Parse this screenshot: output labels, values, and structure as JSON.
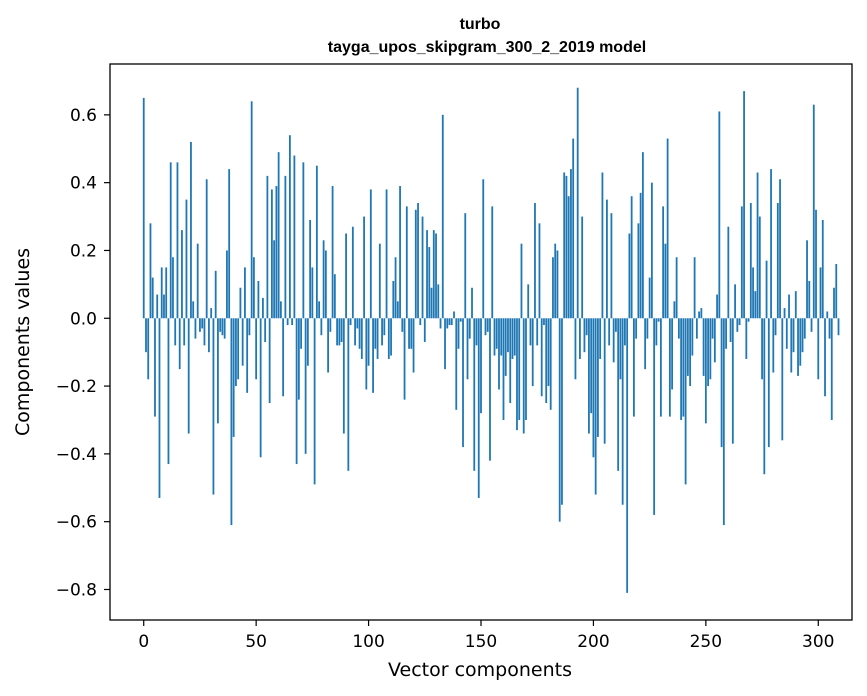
{
  "chart_data": {
    "type": "bar",
    "title": "turbo",
    "subtitle": "tayga_upos_skipgram_300_2_2019 model",
    "xlabel": "Vector components",
    "ylabel": "Components values",
    "xlim": [
      -15,
      315
    ],
    "ylim": [
      -0.89,
      0.75
    ],
    "xticks": [
      0,
      50,
      100,
      150,
      200,
      250,
      300
    ],
    "xtick_labels": [
      "0",
      "50",
      "100",
      "150",
      "200",
      "250",
      "300"
    ],
    "yticks": [
      -0.8,
      -0.6,
      -0.4,
      -0.2,
      0.0,
      0.2,
      0.4,
      0.6
    ],
    "ytick_labels": [
      "−0.8",
      "−0.6",
      "−0.4",
      "−0.2",
      "0.0",
      "0.2",
      "0.4",
      "0.6"
    ],
    "bar_color": "#1f77b4",
    "grid": false,
    "values": [
      0.65,
      -0.1,
      -0.18,
      0.28,
      0.12,
      -0.29,
      0.07,
      -0.53,
      0.15,
      0.07,
      0.15,
      -0.43,
      0.46,
      0.18,
      -0.08,
      0.46,
      -0.15,
      0.26,
      -0.08,
      0.35,
      -0.34,
      0.52,
      0.05,
      -0.06,
      0.22,
      -0.04,
      -0.03,
      -0.08,
      0.41,
      -0.1,
      0.03,
      -0.52,
      0.14,
      -0.31,
      -0.04,
      -0.05,
      -0.06,
      0.2,
      0.44,
      -0.61,
      -0.35,
      -0.2,
      -0.18,
      0.09,
      -0.14,
      0.15,
      -0.22,
      -0.05,
      0.64,
      0.18,
      -0.18,
      0.11,
      -0.41,
      0.06,
      -0.07,
      0.42,
      -0.25,
      0.38,
      0.23,
      0.39,
      0.49,
      0.05,
      -0.23,
      0.42,
      -0.02,
      0.54,
      -0.02,
      0.48,
      -0.43,
      -0.24,
      -0.09,
      0.46,
      -0.4,
      -0.14,
      0.29,
      0.15,
      -0.49,
      0.45,
      0.05,
      -0.05,
      0.23,
      0.2,
      -0.16,
      -0.04,
      0.39,
      0.13,
      -0.08,
      -0.08,
      -0.07,
      -0.34,
      0.25,
      -0.45,
      -0.02,
      0.27,
      -0.08,
      -0.03,
      -0.09,
      -0.12,
      0.3,
      -0.21,
      -0.14,
      0.38,
      -0.22,
      -0.09,
      -0.12,
      0.22,
      -0.08,
      -0.05,
      0.38,
      -0.12,
      -0.11,
      0.11,
      0.18,
      0.05,
      0.39,
      -0.04,
      -0.24,
      0.33,
      -0.09,
      -0.09,
      -0.16,
      0.32,
      0.34,
      -0.02,
      0.3,
      -0.07,
      0.26,
      0.21,
      0.09,
      0.26,
      0.25,
      0.1,
      -0.03,
      0.6,
      -0.15,
      -0.03,
      -0.02,
      -0.02,
      0.02,
      -0.27,
      -0.09,
      -0.01,
      -0.38,
      0.31,
      -0.18,
      -0.06,
      0.09,
      -0.45,
      -0.08,
      -0.53,
      -0.28,
      0.41,
      -0.05,
      -0.04,
      -0.42,
      0.33,
      -0.11,
      -0.09,
      -0.21,
      -0.11,
      -0.3,
      -0.17,
      -0.1,
      -0.25,
      -0.12,
      -0.11,
      -0.33,
      -0.3,
      0.22,
      -0.34,
      -0.3,
      0.1,
      -0.08,
      -0.2,
      0.34,
      -0.08,
      0.28,
      -0.23,
      -0.02,
      -0.25,
      -0.2,
      -0.27,
      0.18,
      0.22,
      0.2,
      -0.6,
      -0.55,
      0.43,
      0.42,
      0.36,
      0.44,
      0.53,
      -0.18,
      0.68,
      -0.12,
      0.3,
      -0.1,
      -0.05,
      -0.34,
      -0.28,
      -0.41,
      -0.52,
      -0.35,
      -0.12,
      0.43,
      -0.37,
      0.35,
      -0.08,
      0.31,
      -0.13,
      -0.04,
      -0.45,
      -0.18,
      -0.55,
      -0.08,
      -0.81,
      0.25,
      0.36,
      -0.29,
      -0.06,
      0.28,
      0.37,
      0.49,
      -0.15,
      -0.06,
      0.12,
      0.4,
      -0.58,
      -0.08,
      -0.01,
      -0.29,
      0.33,
      0.22,
      0.53,
      -0.29,
      -0.21,
      0.05,
      0.18,
      -0.06,
      -0.3,
      -0.29,
      -0.49,
      -0.17,
      -0.2,
      -0.11,
      0.18,
      -0.06,
      0.02,
      0.03,
      -0.17,
      -0.31,
      -0.2,
      -0.18,
      -0.06,
      -0.13,
      0.07,
      0.61,
      -0.38,
      -0.61,
      -0.09,
      0.27,
      -0.07,
      -0.37,
      0.1,
      -0.04,
      -0.02,
      0.33,
      0.67,
      -0.12,
      -0.01,
      0.34,
      0.15,
      0.08,
      0.43,
      0.3,
      -0.18,
      -0.46,
      0.17,
      -0.38,
      0.44,
      -0.16,
      -0.05,
      0.34,
      0.41,
      -0.36,
      0.03,
      -0.09,
      0.07,
      -0.16,
      -0.1,
      0.08,
      -0.17,
      -0.14,
      -0.1,
      -0.06,
      0.23,
      0.11,
      -0.04,
      0.63,
      0.32,
      -0.18,
      0.15,
      0.29,
      -0.23,
      0.02,
      -0.06,
      -0.3,
      0.09,
      0.16,
      -0.05
    ]
  }
}
